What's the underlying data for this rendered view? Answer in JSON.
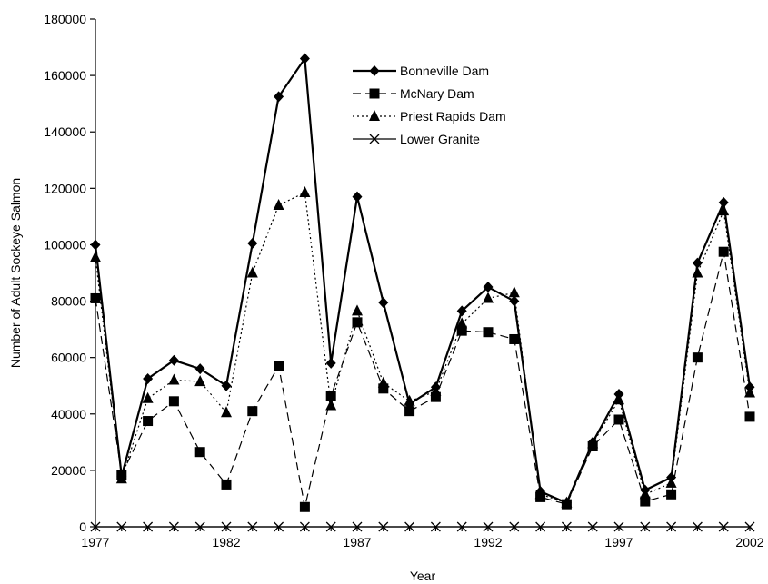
{
  "chart_data": {
    "type": "line",
    "title": "",
    "xlabel": "Year",
    "ylabel": "Number of Adult Sockeye Salmon",
    "xlim": [
      1977,
      2002
    ],
    "ylim": [
      0,
      180000
    ],
    "xticks": [
      1977,
      1982,
      1987,
      1992,
      1997,
      2002
    ],
    "yticks": [
      0,
      20000,
      40000,
      60000,
      80000,
      100000,
      120000,
      140000,
      160000,
      180000
    ],
    "grid": false,
    "legend_position": "top-right",
    "x": [
      1977,
      1978,
      1979,
      1980,
      1981,
      1982,
      1983,
      1984,
      1985,
      1986,
      1987,
      1988,
      1989,
      1990,
      1991,
      1992,
      1993,
      1994,
      1995,
      1996,
      1997,
      1998,
      1999,
      2000,
      2001,
      2002
    ],
    "series": [
      {
        "name": "Bonneville Dam",
        "line": "solid",
        "marker": "diamond",
        "values": [
          100000,
          18000,
          52500,
          59000,
          56000,
          50000,
          100500,
          152500,
          166000,
          58000,
          117000,
          79500,
          43500,
          49500,
          76500,
          85000,
          80000,
          12500,
          8500,
          30000,
          47000,
          13000,
          17500,
          93500,
          115000,
          49500
        ]
      },
      {
        "name": "McNary Dam",
        "line": "dashed",
        "marker": "square",
        "values": [
          81000,
          18500,
          37500,
          44500,
          26500,
          15000,
          41000,
          57000,
          7000,
          46500,
          72500,
          49000,
          41000,
          46000,
          69500,
          69000,
          66500,
          10500,
          8000,
          28500,
          38000,
          9000,
          11500,
          60000,
          97500,
          39000
        ]
      },
      {
        "name": "Priest Rapids Dam",
        "line": "dotted",
        "marker": "triangle",
        "values": [
          95500,
          17000,
          45500,
          52000,
          51500,
          40500,
          90000,
          114000,
          118500,
          43000,
          76500,
          51000,
          44500,
          48000,
          72000,
          81000,
          83000,
          11500,
          8500,
          29500,
          45000,
          11500,
          15500,
          90000,
          112000,
          47500
        ]
      },
      {
        "name": "Lower Granite",
        "line": "solid-thin",
        "marker": "x",
        "values": [
          0,
          0,
          0,
          0,
          0,
          0,
          0,
          0,
          0,
          0,
          0,
          0,
          0,
          0,
          0,
          0,
          0,
          0,
          0,
          0,
          0,
          0,
          0,
          0,
          0,
          0
        ]
      }
    ]
  }
}
